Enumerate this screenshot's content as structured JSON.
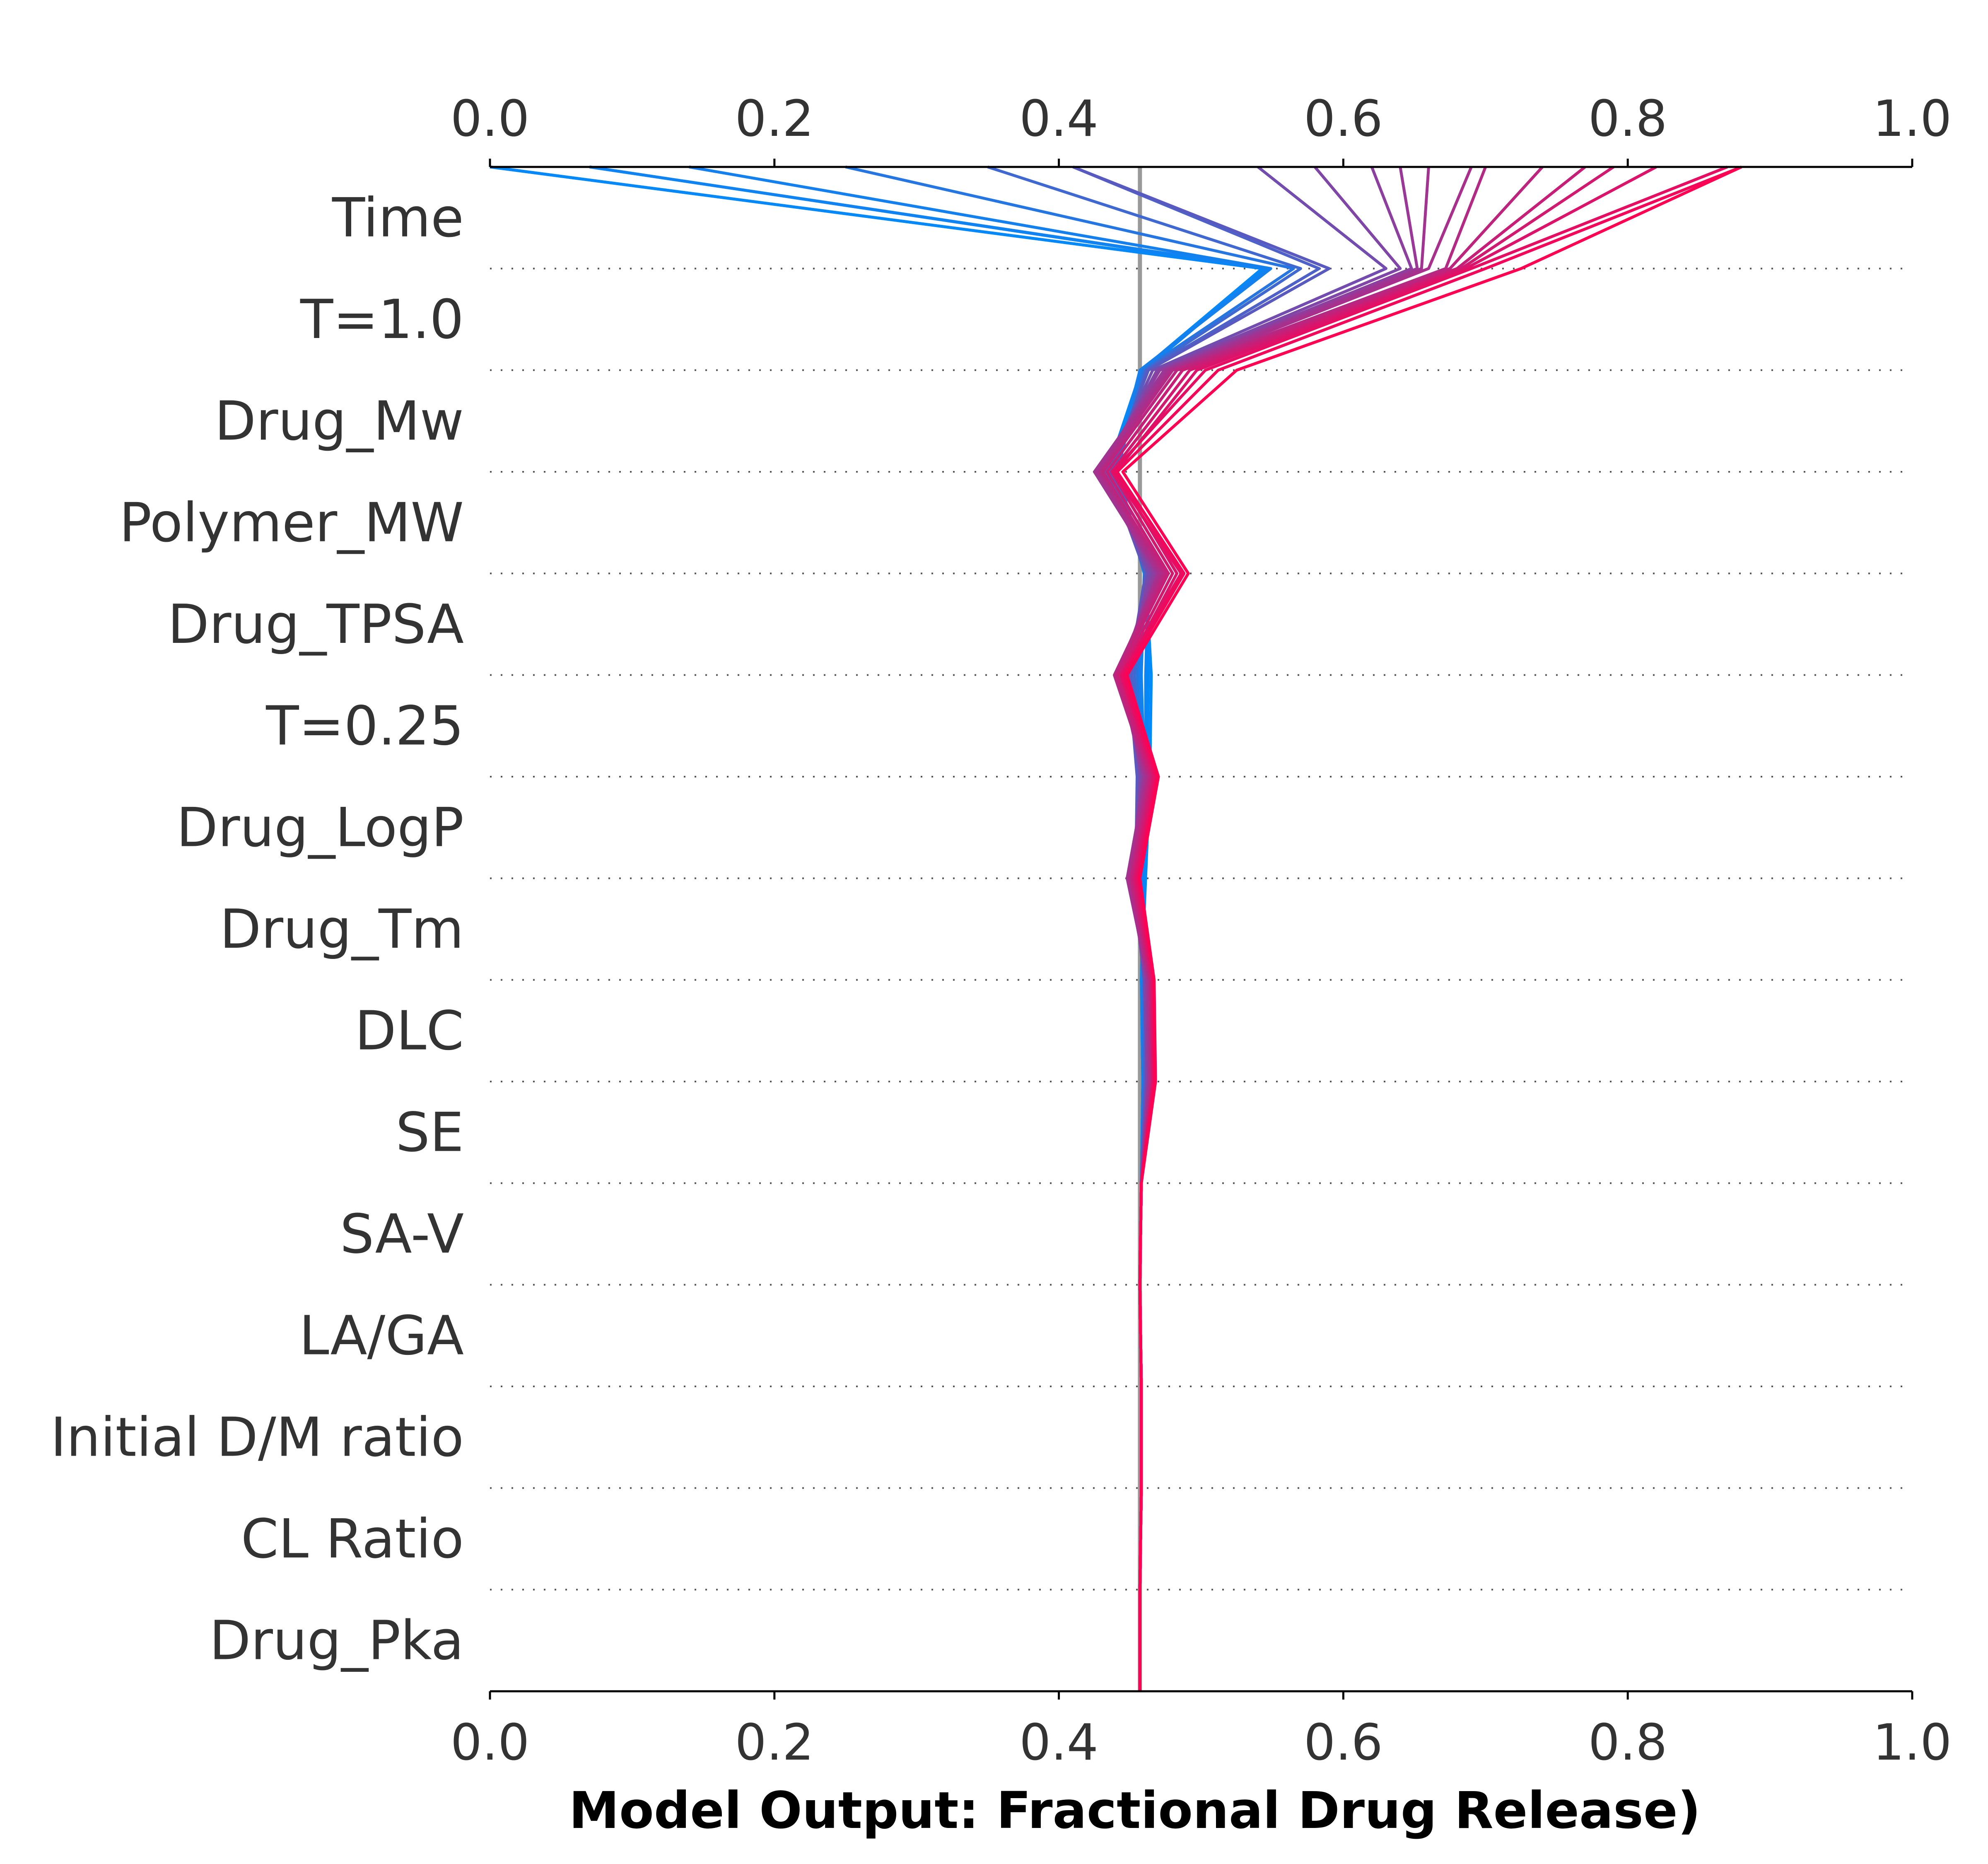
{
  "chart_data": {
    "type": "line",
    "xlabel": "Model Output: Fractional Drug Release)",
    "xlim": [
      0.0,
      1.0
    ],
    "xticks": [
      "0.0",
      "0.2",
      "0.4",
      "0.6",
      "0.8",
      "1.0"
    ],
    "base_value": 0.457,
    "features": [
      "Time",
      "T=1.0",
      "Drug_Mw",
      "Polymer_MW",
      "Drug_TPSA",
      "T=0.25",
      "Drug_LogP",
      "Drug_Tm",
      "DLC",
      "SE",
      "SA-V",
      "LA/GA",
      "Initial D/M ratio",
      "CL Ratio",
      "Drug_Pka"
    ],
    "base_line_color": "#999999",
    "gradient_colors": [
      "#008bfb",
      "#ff0052"
    ],
    "grid": "dotted horizontal lines between features",
    "series": [
      {
        "color_t": 0.0,
        "values": [
          0.0,
          0.543,
          0.459,
          0.436,
          0.461,
          0.465,
          0.464,
          0.461,
          0.458,
          0.459,
          0.458,
          0.457,
          0.458,
          0.458,
          0.457
        ]
      },
      {
        "color_t": 0.02,
        "values": [
          0.0,
          0.543,
          0.458,
          0.434,
          0.462,
          0.463,
          0.462,
          0.46,
          0.458,
          0.459,
          0.458,
          0.457,
          0.458,
          0.458,
          0.457
        ]
      },
      {
        "color_t": 0.04,
        "values": [
          0.07,
          0.545,
          0.46,
          0.438,
          0.463,
          0.461,
          0.461,
          0.459,
          0.458,
          0.459,
          0.458,
          0.457,
          0.458,
          0.458,
          0.457
        ]
      },
      {
        "color_t": 0.06,
        "values": [
          0.07,
          0.547,
          0.458,
          0.44,
          0.46,
          0.458,
          0.46,
          0.459,
          0.459,
          0.46,
          0.458,
          0.457,
          0.458,
          0.458,
          0.457
        ]
      },
      {
        "color_t": 0.08,
        "values": [
          0.14,
          0.549,
          0.457,
          0.439,
          0.461,
          0.457,
          0.459,
          0.458,
          0.459,
          0.459,
          0.458,
          0.457,
          0.458,
          0.458,
          0.457
        ]
      },
      {
        "color_t": 0.15,
        "values": [
          0.25,
          0.565,
          0.459,
          0.441,
          0.462,
          0.455,
          0.458,
          0.457,
          0.459,
          0.46,
          0.458,
          0.457,
          0.458,
          0.458,
          0.457
        ]
      },
      {
        "color_t": 0.25,
        "values": [
          0.35,
          0.57,
          0.461,
          0.439,
          0.463,
          0.453,
          0.457,
          0.456,
          0.46,
          0.46,
          0.458,
          0.457,
          0.458,
          0.458,
          0.457
        ]
      },
      {
        "color_t": 0.3,
        "values": [
          0.41,
          0.583,
          0.462,
          0.437,
          0.462,
          0.451,
          0.456,
          0.455,
          0.461,
          0.461,
          0.458,
          0.457,
          0.458,
          0.458,
          0.457
        ]
      },
      {
        "color_t": 0.35,
        "values": [
          0.41,
          0.59,
          0.463,
          0.435,
          0.461,
          0.449,
          0.455,
          0.454,
          0.461,
          0.461,
          0.458,
          0.457,
          0.458,
          0.458,
          0.457
        ]
      },
      {
        "color_t": 0.45,
        "values": [
          0.54,
          0.63,
          0.466,
          0.433,
          0.463,
          0.447,
          0.457,
          0.452,
          0.46,
          0.462,
          0.458,
          0.457,
          0.458,
          0.458,
          0.457
        ]
      },
      {
        "color_t": 0.5,
        "values": [
          0.58,
          0.64,
          0.469,
          0.431,
          0.465,
          0.445,
          0.458,
          0.451,
          0.461,
          0.462,
          0.458,
          0.457,
          0.458,
          0.458,
          0.457
        ]
      },
      {
        "color_t": 0.55,
        "values": [
          0.62,
          0.648,
          0.471,
          0.428,
          0.467,
          0.443,
          0.459,
          0.45,
          0.462,
          0.463,
          0.458,
          0.457,
          0.458,
          0.458,
          0.457
        ]
      },
      {
        "color_t": 0.6,
        "values": [
          0.64,
          0.652,
          0.474,
          0.426,
          0.469,
          0.442,
          0.46,
          0.449,
          0.462,
          0.463,
          0.458,
          0.457,
          0.458,
          0.458,
          0.457
        ]
      },
      {
        "color_t": 0.63,
        "values": [
          0.66,
          0.655,
          0.476,
          0.425,
          0.47,
          0.441,
          0.461,
          0.448,
          0.463,
          0.464,
          0.458,
          0.457,
          0.458,
          0.458,
          0.457
        ]
      },
      {
        "color_t": 0.66,
        "values": [
          0.69,
          0.66,
          0.478,
          0.427,
          0.471,
          0.44,
          0.462,
          0.449,
          0.463,
          0.464,
          0.458,
          0.457,
          0.458,
          0.458,
          0.457
        ]
      },
      {
        "color_t": 0.7,
        "values": [
          0.7,
          0.672,
          0.48,
          0.429,
          0.473,
          0.439,
          0.463,
          0.45,
          0.464,
          0.465,
          0.458,
          0.457,
          0.458,
          0.458,
          0.457
        ]
      },
      {
        "color_t": 0.74,
        "values": [
          0.74,
          0.675,
          0.483,
          0.431,
          0.475,
          0.44,
          0.464,
          0.451,
          0.464,
          0.465,
          0.458,
          0.457,
          0.458,
          0.458,
          0.457
        ]
      },
      {
        "color_t": 0.78,
        "values": [
          0.77,
          0.68,
          0.487,
          0.434,
          0.477,
          0.441,
          0.465,
          0.452,
          0.465,
          0.466,
          0.458,
          0.457,
          0.458,
          0.458,
          0.457
        ]
      },
      {
        "color_t": 0.82,
        "values": [
          0.79,
          0.683,
          0.492,
          0.437,
          0.48,
          0.443,
          0.466,
          0.453,
          0.465,
          0.466,
          0.458,
          0.457,
          0.458,
          0.458,
          0.457
        ]
      },
      {
        "color_t": 0.86,
        "values": [
          0.82,
          0.686,
          0.497,
          0.44,
          0.483,
          0.445,
          0.467,
          0.454,
          0.466,
          0.466,
          0.458,
          0.457,
          0.458,
          0.458,
          0.457
        ]
      },
      {
        "color_t": 0.9,
        "values": [
          0.87,
          0.69,
          0.503,
          0.438,
          0.486,
          0.444,
          0.468,
          0.455,
          0.466,
          0.467,
          0.458,
          0.457,
          0.458,
          0.458,
          0.457
        ]
      },
      {
        "color_t": 0.95,
        "values": [
          0.88,
          0.7,
          0.512,
          0.441,
          0.488,
          0.446,
          0.469,
          0.456,
          0.467,
          0.467,
          0.458,
          0.457,
          0.458,
          0.458,
          0.457
        ]
      },
      {
        "color_t": 1.0,
        "values": [
          0.88,
          0.725,
          0.525,
          0.445,
          0.491,
          0.448,
          0.47,
          0.457,
          0.467,
          0.468,
          0.458,
          0.457,
          0.458,
          0.458,
          0.457
        ]
      }
    ]
  }
}
